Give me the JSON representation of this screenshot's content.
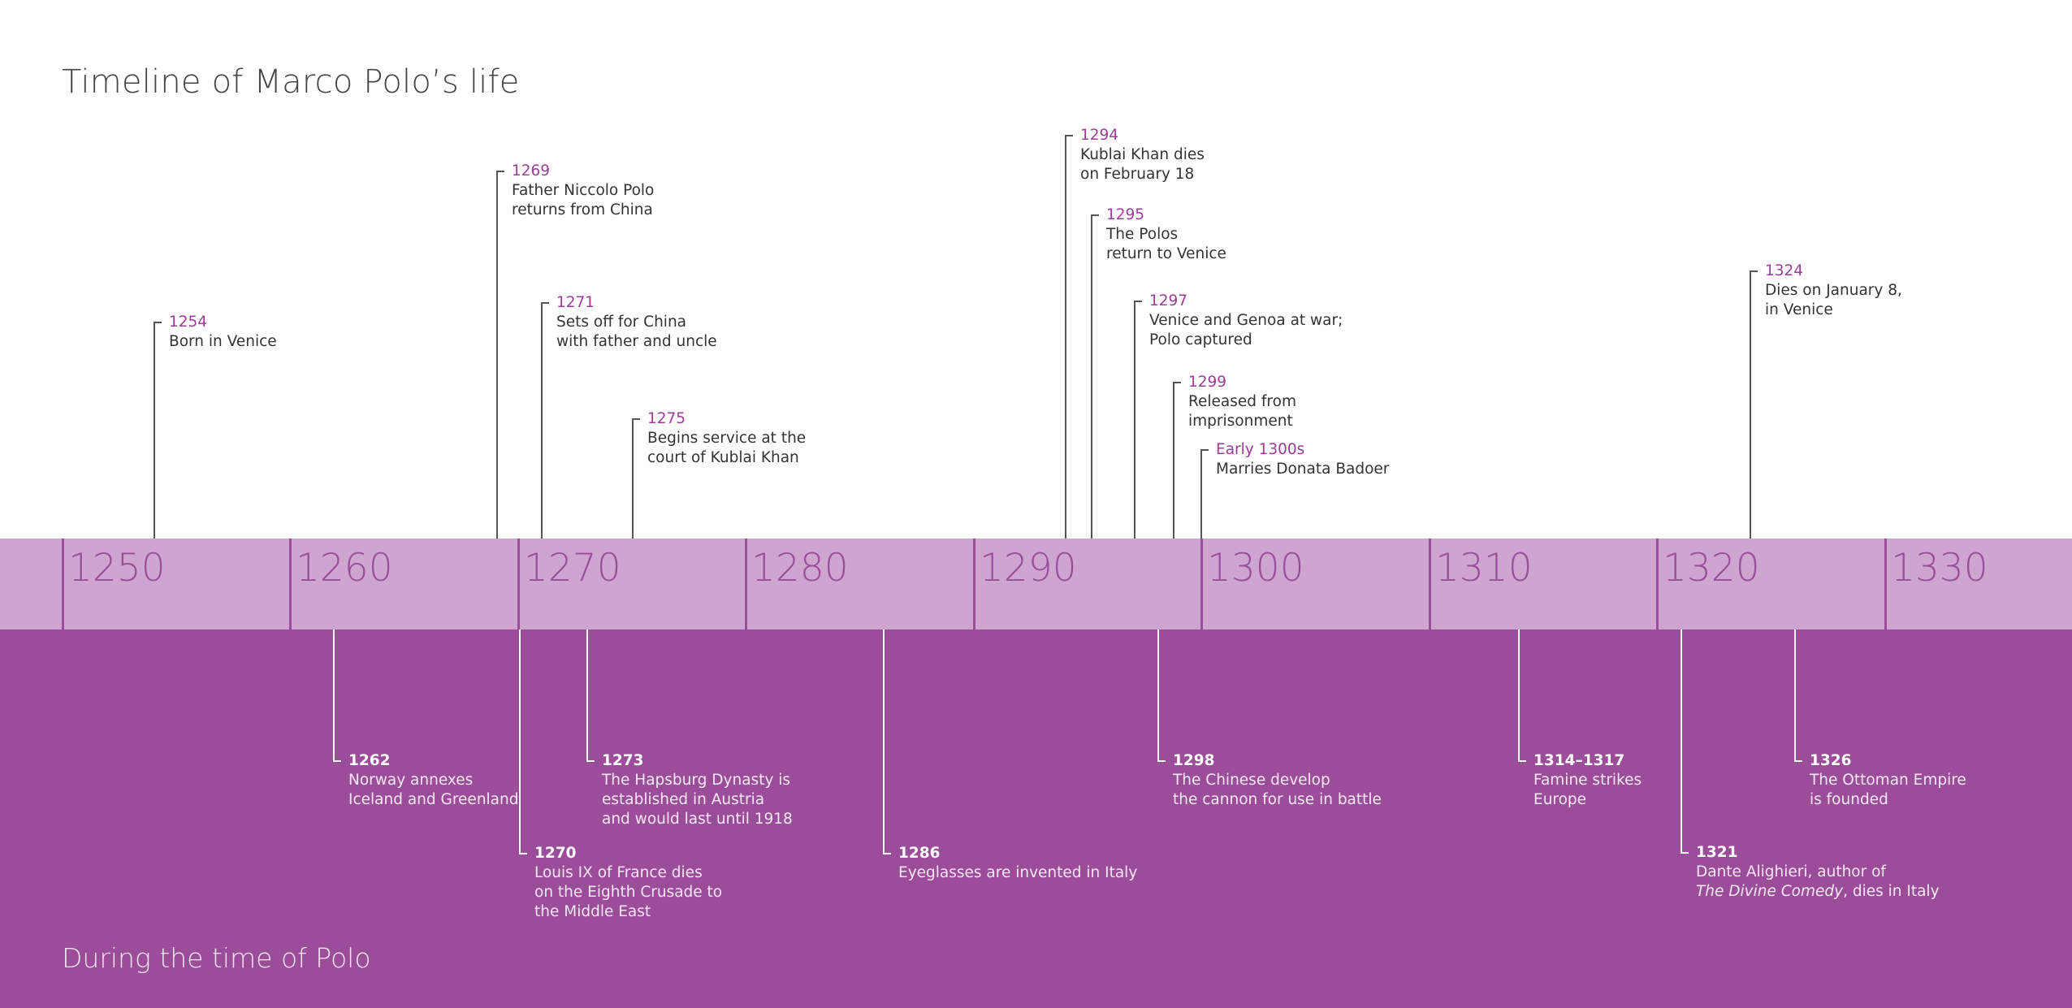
{
  "title": "Timeline of Marco Polo’s life",
  "footer": "During the time of Polo",
  "colors": {
    "band": "#cda5d0",
    "lower": "#9b4d9a",
    "accent": "#9b3c98"
  },
  "decades": [
    "1250",
    "1260",
    "1270",
    "1280",
    "1290",
    "1300",
    "1310",
    "1320",
    "1330"
  ],
  "life_events": [
    {
      "year": "1254",
      "lines": [
        "Born in Venice"
      ]
    },
    {
      "year": "1269",
      "lines": [
        "Father Niccolo Polo",
        "returns from China"
      ]
    },
    {
      "year": "1271",
      "lines": [
        "Sets off for China",
        "with father and uncle"
      ]
    },
    {
      "year": "1275",
      "lines": [
        "Begins service at the",
        "court of Kublai Khan"
      ]
    },
    {
      "year": "1294",
      "lines": [
        "Kublai Khan dies",
        "on February 18"
      ]
    },
    {
      "year": "1295",
      "lines": [
        "The Polos",
        "return to Venice"
      ]
    },
    {
      "year": "1297",
      "lines": [
        "Venice and Genoa at war;",
        "Polo captured"
      ]
    },
    {
      "year": "1299",
      "lines": [
        "Released from",
        "imprisonment"
      ]
    },
    {
      "year": "Early 1300s",
      "lines": [
        "Marries Donata Badoer"
      ]
    },
    {
      "year": "1324",
      "lines": [
        "Dies on January 8,",
        "in Venice"
      ]
    }
  ],
  "world_events": [
    {
      "year": "1262",
      "lines": [
        "Norway annexes",
        "Iceland and Greenland"
      ]
    },
    {
      "year": "1270",
      "lines": [
        "Louis IX of France dies",
        "on the Eighth Crusade to",
        "the Middle East"
      ]
    },
    {
      "year": "1273",
      "lines": [
        "The Hapsburg Dynasty is",
        "established in Austria",
        "and would last until 1918"
      ]
    },
    {
      "year": "1286",
      "lines": [
        "Eyeglasses are invented in Italy"
      ]
    },
    {
      "year": "1298",
      "lines": [
        "The Chinese develop",
        "the cannon for use in battle"
      ]
    },
    {
      "year": "1314–1317",
      "lines": [
        "Famine strikes",
        "Europe"
      ]
    },
    {
      "year": "1321",
      "lines": [
        "Dante Alighieri, author of",
        "The Divine Comedy, dies in Italy"
      ]
    },
    {
      "year": "1326",
      "lines": [
        "The Ottoman Empire",
        "is founded"
      ]
    }
  ]
}
